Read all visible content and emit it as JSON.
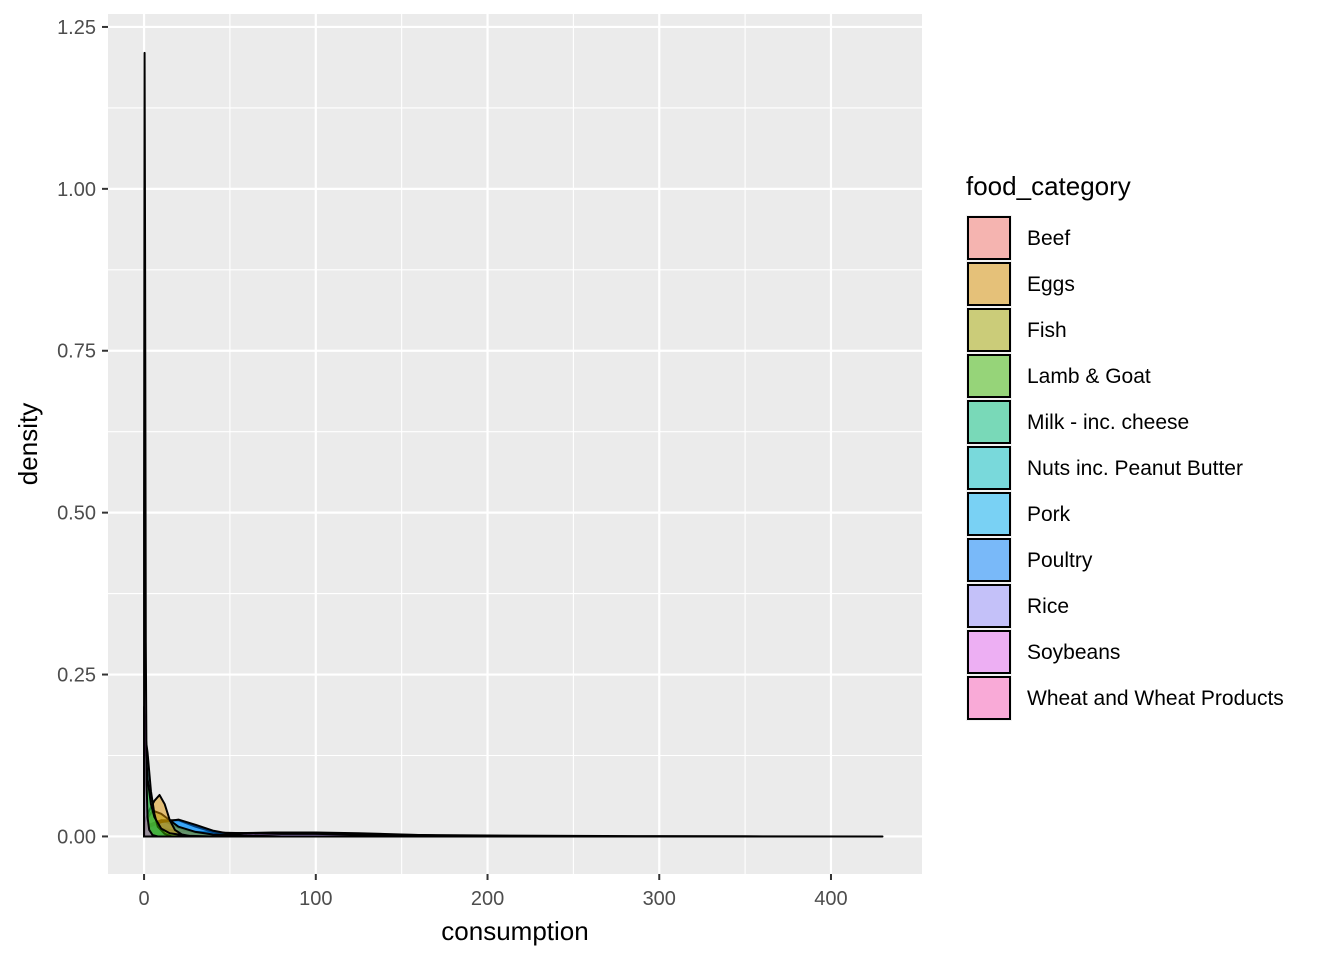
{
  "chart_data": {
    "type": "area",
    "subtype": "density",
    "title": "",
    "xlabel": "consumption",
    "ylabel": "density",
    "xlim": [
      -21,
      453
    ],
    "ylim": [
      -0.058,
      1.27
    ],
    "x_ticks": [
      0,
      100,
      200,
      300,
      400
    ],
    "x_tick_labels": [
      "0",
      "100",
      "200",
      "300",
      "400"
    ],
    "y_ticks": [
      0.0,
      0.25,
      0.5,
      0.75,
      1.0,
      1.25
    ],
    "y_tick_labels": [
      "0.00",
      "0.25",
      "0.50",
      "0.75",
      "1.00",
      "1.25"
    ],
    "grid": true,
    "legend": {
      "title": "food_category",
      "position": "right"
    },
    "series": [
      {
        "name": "Beef",
        "color": "#F8766D",
        "x": [
          0,
          5,
          10,
          15,
          20,
          30,
          40,
          50,
          60
        ],
        "y": [
          0.008,
          0.02,
          0.025,
          0.02,
          0.013,
          0.006,
          0.003,
          0.001,
          0.0
        ]
      },
      {
        "name": "Eggs",
        "color": "#D89000",
        "x": [
          0,
          3,
          6,
          9,
          12,
          15,
          18,
          22,
          28
        ],
        "y": [
          0.02,
          0.04,
          0.055,
          0.064,
          0.05,
          0.025,
          0.01,
          0.003,
          0.0
        ]
      },
      {
        "name": "Fish",
        "color": "#A3A500",
        "x": [
          0,
          5,
          10,
          15,
          20,
          30,
          40,
          60,
          80
        ],
        "y": [
          0.02,
          0.04,
          0.035,
          0.025,
          0.015,
          0.007,
          0.003,
          0.001,
          0.0
        ]
      },
      {
        "name": "Lamb & Goat",
        "color": "#39B600",
        "x": [
          0,
          1,
          2,
          4,
          6,
          10,
          15,
          25,
          40
        ],
        "y": [
          0.2,
          0.14,
          0.09,
          0.05,
          0.03,
          0.012,
          0.005,
          0.001,
          0.0
        ]
      },
      {
        "name": "Milk - inc. cheese",
        "color": "#00BF7D",
        "x": [
          0,
          25,
          50,
          75,
          100,
          125,
          150,
          200,
          250,
          300,
          350,
          430
        ],
        "y": [
          0.002,
          0.003,
          0.003,
          0.0035,
          0.0035,
          0.003,
          0.0025,
          0.0015,
          0.0008,
          0.0004,
          0.0002,
          0.0
        ]
      },
      {
        "name": "Nuts inc. Peanut Butter",
        "color": "#00BFC4",
        "x": [
          0,
          1,
          2,
          3,
          4,
          6,
          8,
          12,
          16
        ],
        "y": [
          0.12,
          0.15,
          0.13,
          0.1,
          0.07,
          0.035,
          0.015,
          0.004,
          0.0
        ]
      },
      {
        "name": "Pork",
        "color": "#00B0F6",
        "x": [
          0,
          10,
          20,
          30,
          40,
          50,
          60,
          70
        ],
        "y": [
          0.015,
          0.025,
          0.025,
          0.015,
          0.007,
          0.003,
          0.001,
          0.0
        ]
      },
      {
        "name": "Poultry",
        "color": "#0080FF",
        "x": [
          0,
          10,
          20,
          30,
          40,
          50,
          60,
          80
        ],
        "y": [
          0.012,
          0.022,
          0.026,
          0.018,
          0.009,
          0.004,
          0.001,
          0.0
        ]
      },
      {
        "name": "Rice",
        "color": "#9590FF",
        "x": [
          0,
          10,
          20,
          40,
          60,
          80,
          100,
          120,
          140,
          160,
          200
        ],
        "y": [
          0.02,
          0.012,
          0.008,
          0.006,
          0.005,
          0.004,
          0.004,
          0.003,
          0.002,
          0.001,
          0.0
        ]
      },
      {
        "name": "Soybeans",
        "color": "#E76BF3",
        "x": [
          0,
          0.3,
          0.6,
          1.0,
          1.5,
          2.0,
          3.0,
          5.0,
          8.0
        ],
        "y": [
          0.5,
          1.21,
          0.9,
          0.3,
          0.08,
          0.03,
          0.01,
          0.002,
          0.0
        ]
      },
      {
        "name": "Wheat and Wheat Products",
        "color": "#FF62BC",
        "x": [
          0,
          25,
          50,
          75,
          100,
          125,
          150,
          175,
          200
        ],
        "y": [
          0.003,
          0.004,
          0.005,
          0.006,
          0.006,
          0.005,
          0.003,
          0.001,
          0.0
        ]
      }
    ]
  }
}
